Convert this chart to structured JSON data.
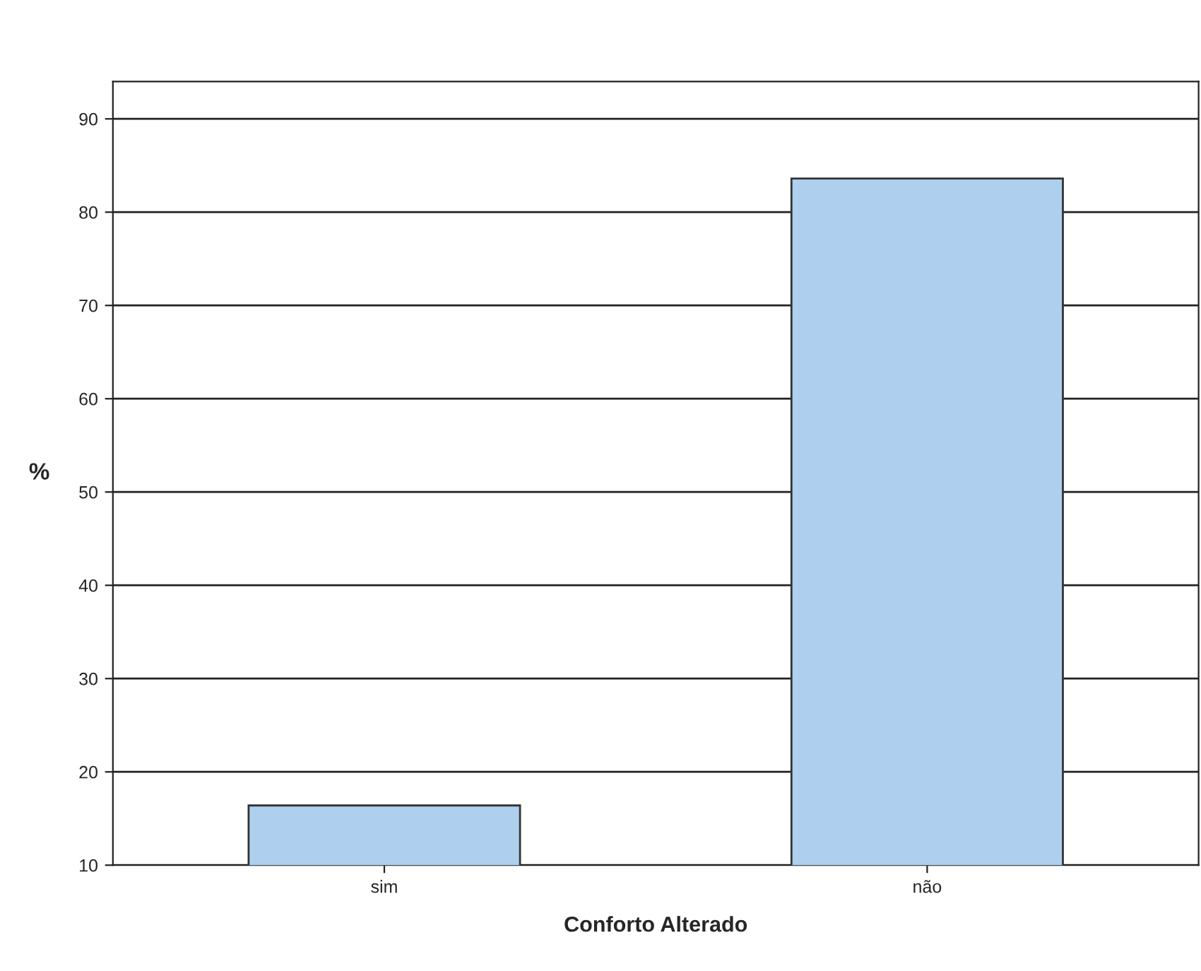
{
  "chart_data": {
    "type": "bar",
    "xlabel": "Conforto Alterado",
    "ylabel": "%",
    "categories": [
      "sim",
      "não"
    ],
    "series": [
      {
        "color": "#aed0ee",
        "values": [
          16.4,
          83.6
        ]
      }
    ],
    "ylim": [
      10,
      94
    ],
    "yticks": [
      10,
      20,
      30,
      40,
      50,
      60,
      70,
      80,
      90
    ],
    "grid": "y",
    "legend": false
  }
}
